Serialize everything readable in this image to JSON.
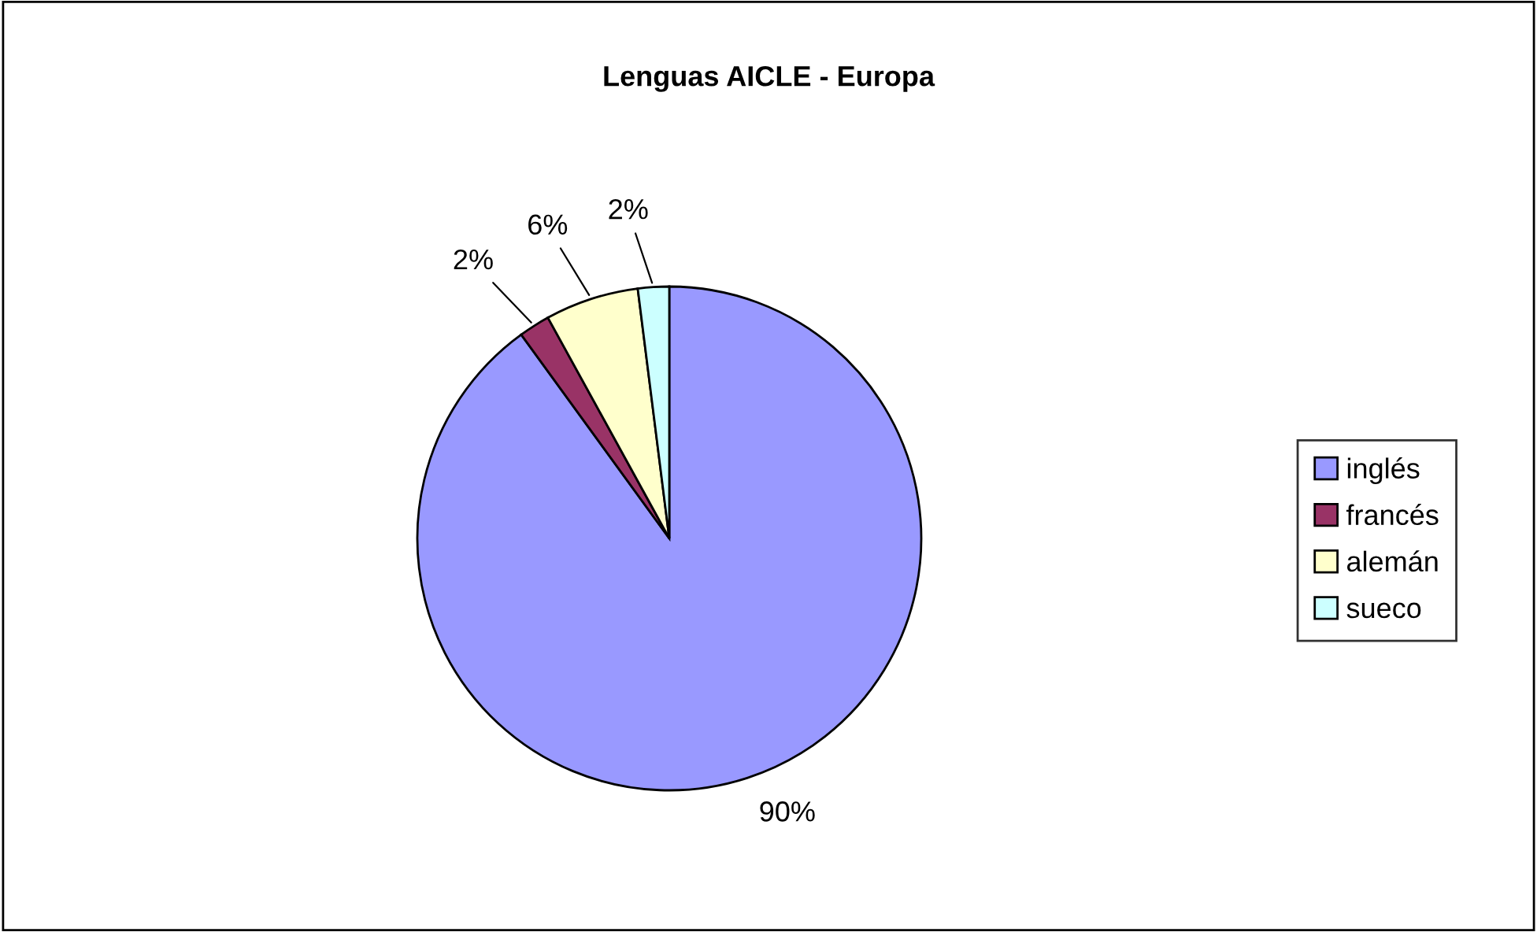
{
  "chart_data": {
    "type": "pie",
    "title": "Lenguas AICLE - Europa",
    "categories": [
      "inglés",
      "francés",
      "alemán",
      "sueco"
    ],
    "values": [
      90,
      2,
      6,
      2
    ],
    "colors": [
      "#9999ff",
      "#993366",
      "#ffffcc",
      "#ccffff"
    ],
    "value_labels": [
      "90%",
      "2%",
      "6%",
      "2%"
    ],
    "legend": "right"
  }
}
